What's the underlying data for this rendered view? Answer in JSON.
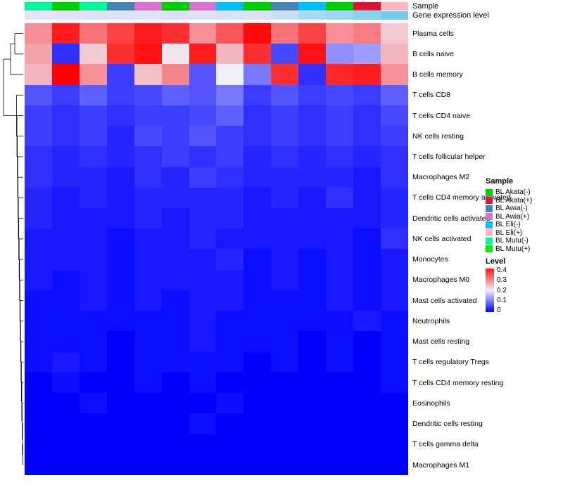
{
  "annotations": {
    "sample_label": "Sample",
    "expr_label": "Gene expression level",
    "sample_colors": [
      "#00FA9A",
      "#00CD00",
      "#00FA9A",
      "#4682B4",
      "#DA70D6",
      "#00CD00",
      "#DA70D6",
      "#00BFFF",
      "#00CD00",
      "#4682B4",
      "#00BFFF",
      "#00CD00",
      "#DC143C",
      "#FFB6C1"
    ],
    "expr_colors": [
      "#E4E4F6",
      "#E2E3F6",
      "#DFE3F6",
      "#DCE3F6",
      "#DFE4F6",
      "#DCE2F5",
      "#DEE4F6",
      "#D4E3F5",
      "#DCE2F5",
      "#C6E1F4",
      "#A6DCF2",
      "#9AD8F1",
      "#86D2EF",
      "#74CCEC"
    ]
  },
  "legend_sample": {
    "title": "Sample",
    "items": [
      {
        "label": "BL Akata(-)",
        "color": "#00CD00"
      },
      {
        "label": "BL Akata(+)",
        "color": "#DC143C"
      },
      {
        "label": "BL Awia(-)",
        "color": "#4682B4"
      },
      {
        "label": "BL Awia(+)",
        "color": "#DA70D6"
      },
      {
        "label": "BL Eli(-)",
        "color": "#00BFFF"
      },
      {
        "label": "BL Eli(+)",
        "color": "#FFB6C1"
      },
      {
        "label": "BL Mutu(-)",
        "color": "#00FA9A"
      },
      {
        "label": "BL Mutu(+)",
        "color": "#00EE00"
      }
    ]
  },
  "legend_level": {
    "title": "Level",
    "ticks": [
      "0.4",
      "0.3",
      "0.2",
      "0.1",
      "0"
    ]
  },
  "chart_data": {
    "type": "heatmap",
    "row_dendrogram": true,
    "column_annotations": [
      "Sample",
      "Gene expression level"
    ],
    "n_columns": 14,
    "rows": [
      "Plasma cells",
      "B cells naive",
      "B cells memory",
      "T cells CD8",
      "T cells CD4 naive",
      "NK cells resting",
      "T cells follicular helper",
      "Macrophages M2",
      "T cells CD4 memory activated",
      "Dendritic cells activated",
      "NK cells activated",
      "Monocytes",
      "Macrophages M0",
      "Mast cells activated",
      "Neutrophils",
      "Mast cells resting",
      "T cells regulatory  Tregs",
      "T cells CD4 memory resting",
      "Eosinophils",
      "Dendritic cells resting",
      "T cells gamma delta",
      "Macrophages M1"
    ],
    "values": [
      [
        0.3,
        0.42,
        0.33,
        0.38,
        0.42,
        0.4,
        0.3,
        0.36,
        0.44,
        0.33,
        0.38,
        0.3,
        0.32,
        0.24
      ],
      [
        0.28,
        0.04,
        0.24,
        0.4,
        0.43,
        0.21,
        0.42,
        0.26,
        0.4,
        0.06,
        0.43,
        0.12,
        0.13,
        0.26
      ],
      [
        0.26,
        0.45,
        0.3,
        0.05,
        0.25,
        0.31,
        0.07,
        0.2,
        0.1,
        0.4,
        0.04,
        0.41,
        0.42,
        0.3
      ],
      [
        0.07,
        0.05,
        0.08,
        0.05,
        0.06,
        0.08,
        0.07,
        0.1,
        0.05,
        0.07,
        0.05,
        0.06,
        0.05,
        0.08
      ],
      [
        0.05,
        0.04,
        0.05,
        0.04,
        0.05,
        0.05,
        0.06,
        0.08,
        0.04,
        0.05,
        0.04,
        0.05,
        0.04,
        0.06
      ],
      [
        0.05,
        0.04,
        0.05,
        0.03,
        0.06,
        0.05,
        0.07,
        0.05,
        0.04,
        0.05,
        0.04,
        0.05,
        0.04,
        0.05
      ],
      [
        0.04,
        0.03,
        0.04,
        0.03,
        0.04,
        0.05,
        0.04,
        0.05,
        0.03,
        0.04,
        0.03,
        0.04,
        0.03,
        0.04
      ],
      [
        0.04,
        0.03,
        0.03,
        0.02,
        0.04,
        0.03,
        0.05,
        0.04,
        0.03,
        0.03,
        0.03,
        0.03,
        0.02,
        0.04
      ],
      [
        0.03,
        0.02,
        0.03,
        0.02,
        0.03,
        0.03,
        0.03,
        0.03,
        0.02,
        0.03,
        0.02,
        0.04,
        0.02,
        0.03
      ],
      [
        0.03,
        0.02,
        0.02,
        0.02,
        0.03,
        0.02,
        0.03,
        0.03,
        0.02,
        0.02,
        0.02,
        0.02,
        0.02,
        0.03
      ],
      [
        0.02,
        0.02,
        0.02,
        0.01,
        0.02,
        0.02,
        0.03,
        0.02,
        0.02,
        0.02,
        0.02,
        0.02,
        0.01,
        0.04
      ],
      [
        0.02,
        0.02,
        0.02,
        0.01,
        0.02,
        0.02,
        0.02,
        0.03,
        0.01,
        0.02,
        0.01,
        0.02,
        0.01,
        0.02
      ],
      [
        0.02,
        0.01,
        0.02,
        0.01,
        0.02,
        0.02,
        0.02,
        0.02,
        0.01,
        0.02,
        0.01,
        0.02,
        0.01,
        0.02
      ],
      [
        0.01,
        0.01,
        0.02,
        0.01,
        0.02,
        0.01,
        0.02,
        0.02,
        0.01,
        0.01,
        0.01,
        0.02,
        0.01,
        0.02
      ],
      [
        0.01,
        0.01,
        0.01,
        0.01,
        0.01,
        0.01,
        0.02,
        0.01,
        0.01,
        0.01,
        0.01,
        0.01,
        0.02,
        0.01
      ],
      [
        0.01,
        0.01,
        0.01,
        0.0,
        0.01,
        0.01,
        0.02,
        0.01,
        0.01,
        0.01,
        0.0,
        0.01,
        0.0,
        0.01
      ],
      [
        0.01,
        0.02,
        0.01,
        0.0,
        0.01,
        0.01,
        0.01,
        0.01,
        0.0,
        0.01,
        0.0,
        0.01,
        0.0,
        0.01
      ],
      [
        0.0,
        0.01,
        0.0,
        0.0,
        0.01,
        0.0,
        0.01,
        0.0,
        0.0,
        0.0,
        0.0,
        0.0,
        0.0,
        0.01
      ],
      [
        0.0,
        0.0,
        0.01,
        0.0,
        0.0,
        0.0,
        0.0,
        0.01,
        0.0,
        0.0,
        0.0,
        0.0,
        0.0,
        0.0
      ],
      [
        0.0,
        0.0,
        0.0,
        0.0,
        0.0,
        0.0,
        0.01,
        0.0,
        0.0,
        0.0,
        0.0,
        0.0,
        0.0,
        0.0
      ],
      [
        0.0,
        0.0,
        0.0,
        0.0,
        0.0,
        0.0,
        0.0,
        0.0,
        0.0,
        0.0,
        0.0,
        0.0,
        0.0,
        0.0
      ],
      [
        0.0,
        0.0,
        0.0,
        0.0,
        0.0,
        0.0,
        0.0,
        0.0,
        0.0,
        0.0,
        0.0,
        0.0,
        0.0,
        0.0
      ]
    ],
    "color_scale": {
      "min": 0,
      "mid": 0.2,
      "max": 0.45,
      "min_color": "#0000FF",
      "mid_color": "#F0F0FA",
      "max_color": "#FF0000"
    }
  }
}
